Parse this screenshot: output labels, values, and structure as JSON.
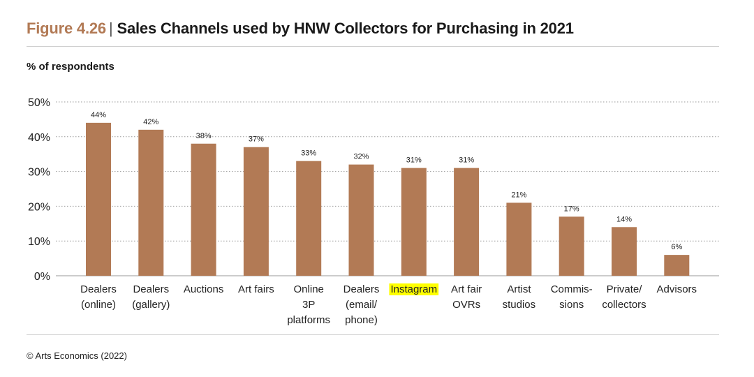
{
  "title": {
    "figure_label": "Figure 4.26",
    "separator": "|",
    "text": "Sales Channels used by HNW Collectors for Purchasing in 2021"
  },
  "source": "© Arts Economics (2022)",
  "colors": {
    "bar": "#b27a55",
    "figure_label": "#b27a55",
    "highlight": "#ffff00"
  },
  "chart_data": {
    "type": "bar",
    "ylabel": "% of respondents",
    "ylim": [
      0,
      50
    ],
    "yticks": [
      {
        "value": 0,
        "label": "0%"
      },
      {
        "value": 10,
        "label": "10%"
      },
      {
        "value": 20,
        "label": "20%"
      },
      {
        "value": 30,
        "label": "30%"
      },
      {
        "value": 40,
        "label": "40%"
      },
      {
        "value": 50,
        "label": "50%"
      }
    ],
    "grid": "dotted horizontal",
    "categories": [
      {
        "lines": [
          "Dealers",
          "(online)"
        ],
        "highlight": false
      },
      {
        "lines": [
          "Dealers",
          "(gallery)"
        ],
        "highlight": false
      },
      {
        "lines": [
          "Auctions"
        ],
        "highlight": false
      },
      {
        "lines": [
          "Art fairs"
        ],
        "highlight": false
      },
      {
        "lines": [
          "Online",
          "3P",
          "platforms"
        ],
        "highlight": false
      },
      {
        "lines": [
          "Dealers",
          "(email/",
          "phone)"
        ],
        "highlight": false
      },
      {
        "lines": [
          "Instagram"
        ],
        "highlight": true
      },
      {
        "lines": [
          "Art fair",
          "OVRs"
        ],
        "highlight": false
      },
      {
        "lines": [
          "Artist",
          "studios"
        ],
        "highlight": false
      },
      {
        "lines": [
          "Commis-",
          "sions"
        ],
        "highlight": false
      },
      {
        "lines": [
          "Private/",
          "collectors"
        ],
        "highlight": false
      },
      {
        "lines": [
          "Advisors"
        ],
        "highlight": false
      }
    ],
    "values": [
      44,
      42,
      38,
      37,
      33,
      32,
      31,
      31,
      21,
      17,
      14,
      6
    ],
    "data_labels": [
      "44%",
      "42%",
      "38%",
      "37%",
      "33%",
      "32%",
      "31%",
      "31%",
      "21%",
      "17%",
      "14%",
      "6%"
    ]
  }
}
